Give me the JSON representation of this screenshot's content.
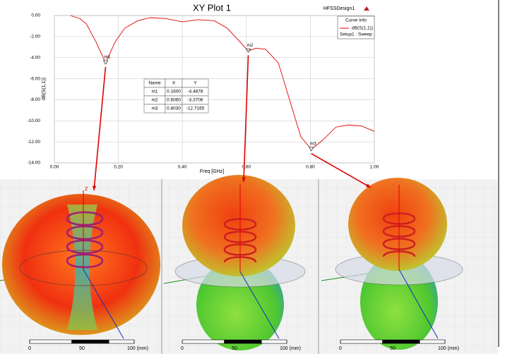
{
  "chart_data": {
    "type": "line",
    "title": "XY Plot 1",
    "design_name": "HFSSDesign1",
    "x_label": "Freq [GHz]",
    "y_label": "dB(S(1,1))",
    "legend_title": "Curve Info",
    "legend_subtitle": "Setup1 : Sweep",
    "x": [
      0.05,
      0.08,
      0.1,
      0.13,
      0.16,
      0.19,
      0.22,
      0.26,
      0.3,
      0.35,
      0.4,
      0.45,
      0.5,
      0.54,
      0.58,
      0.606,
      0.63,
      0.66,
      0.7,
      0.74,
      0.77,
      0.803,
      0.84,
      0.88,
      0.92,
      0.96,
      1.0
    ],
    "series": [
      {
        "name": "dB(S(1,1))",
        "color": "#e00000",
        "values": [
          0,
          -0.3,
          -0.8,
          -2.5,
          -4.49,
          -2.5,
          -1.2,
          -0.5,
          -0.2,
          -0.3,
          -0.6,
          -0.4,
          -0.5,
          -1.2,
          -2.5,
          -3.37,
          -3.1,
          -3.2,
          -4.5,
          -8.5,
          -11.5,
          -12.72,
          -11.8,
          -10.6,
          -10.4,
          -10.5,
          -11.0
        ]
      }
    ],
    "xlim": [
      0,
      1
    ],
    "ylim": [
      -14,
      0
    ],
    "xticks": [
      {
        "value": 0,
        "label": "0.00"
      },
      {
        "value": 0.2,
        "label": "0.20"
      },
      {
        "value": 0.4,
        "label": "0.40"
      },
      {
        "value": 0.6,
        "label": "0.60"
      },
      {
        "value": 0.8,
        "label": "0.80"
      },
      {
        "value": 1,
        "label": "1.00"
      }
    ],
    "yticks": [
      {
        "value": 0,
        "label": "0.00"
      },
      {
        "value": -2,
        "label": "-2.00"
      },
      {
        "value": -4,
        "label": "-4.00"
      },
      {
        "value": -6,
        "label": "-6.00"
      },
      {
        "value": -8,
        "label": "-8.00"
      },
      {
        "value": -10,
        "label": "-10.00"
      },
      {
        "value": -12,
        "label": "-12.00"
      },
      {
        "value": -14,
        "label": "-14.00"
      }
    ],
    "grid": true,
    "table_columns": [
      "Name",
      "X",
      "Y"
    ],
    "markers": [
      {
        "name": "m1",
        "x": 0.16,
        "x_label": "0.1600",
        "y": -4.4878,
        "y_label": "-4.4878"
      },
      {
        "name": "m2",
        "x": 0.606,
        "x_label": "0.6060",
        "y": -3.3706,
        "y_label": "-3.3706"
      },
      {
        "name": "m3",
        "x": 0.803,
        "x_label": "0.8030",
        "y": -12.7165,
        "y_label": "-12.7165"
      }
    ],
    "panels": [
      {
        "axis_label": "Z",
        "scale_ticks": [
          0,
          50,
          {
            "value": 100,
            "label": "100 (mm)"
          }
        ]
      },
      {
        "scale_ticks": [
          0,
          50,
          {
            "value": 100,
            "label": "100 (mm)"
          }
        ]
      },
      {
        "scale_ticks": [
          0,
          50,
          {
            "value": 100,
            "label": "100 (mm)"
          }
        ]
      }
    ]
  }
}
